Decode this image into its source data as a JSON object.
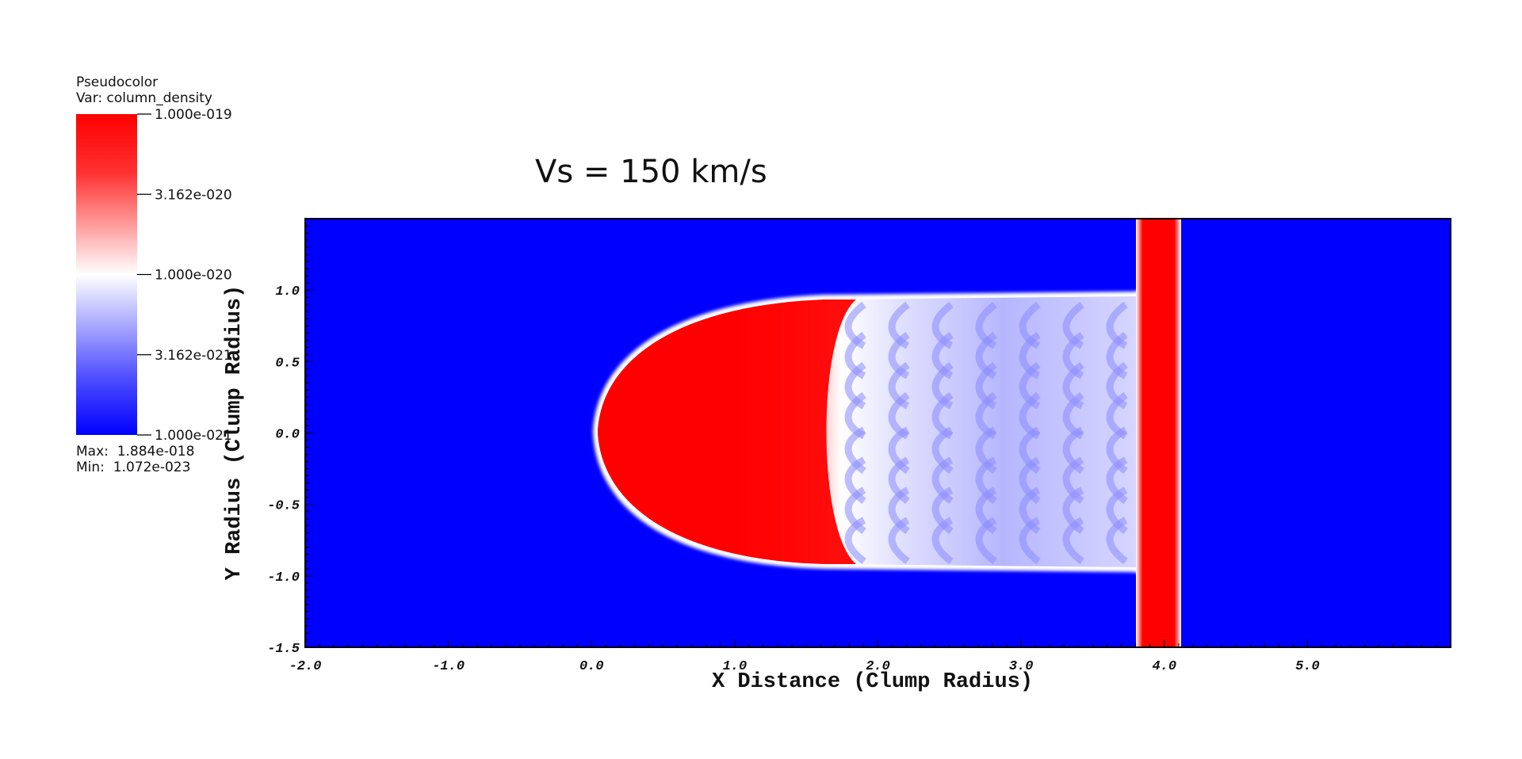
{
  "legend": {
    "line1": "Pseudocolor",
    "line2": "Var: column_density",
    "ticks": [
      "1.000e-019",
      "3.162e-020",
      "1.000e-020",
      "3.162e-021",
      "1.000e-021"
    ],
    "max_label": "Max:",
    "max_value": "1.884e-018",
    "min_label": "Min:",
    "min_value": "1.072e-023",
    "colors": {
      "high": "#ff0000",
      "mid": "#ffffff",
      "low": "#0000ff"
    }
  },
  "plot": {
    "title": "Vs = 150 km/s",
    "xlabel": "X Distance (Clump Radius)",
    "ylabel": "Y Radius (Clump Radius)",
    "xticks": [
      "-2.0",
      "-1.0",
      "0.0",
      "1.0",
      "2.0",
      "3.0",
      "4.0",
      "5.0"
    ],
    "yticks": [
      "1.0",
      "0.5",
      "0.0",
      "-0.5",
      "-1.0",
      "-1.5"
    ],
    "xlim": [
      -2.0,
      6.0
    ],
    "ylim": [
      -1.5,
      1.5
    ],
    "background_color": "#0000ff"
  }
}
